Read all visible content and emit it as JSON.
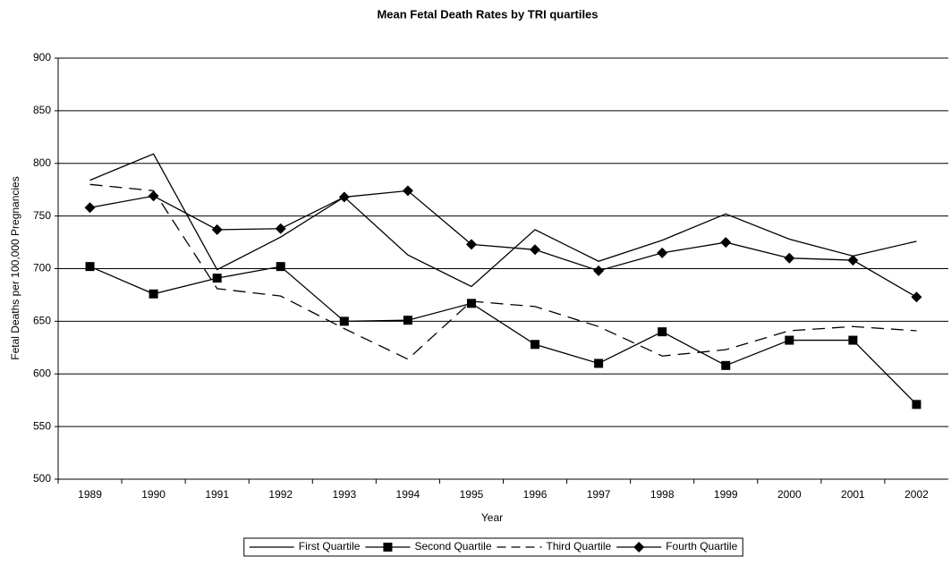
{
  "chart_data": {
    "type": "line",
    "title": "Mean Fetal Death Rates by TRI quartiles",
    "x_label": "Year",
    "y_label": "Fetal Deaths per 100,000 Pregnancies",
    "categories": [
      "1989",
      "1990",
      "1991",
      "1992",
      "1993",
      "1994",
      "1995",
      "1996",
      "1997",
      "1998",
      "1999",
      "2000",
      "2001",
      "2002"
    ],
    "ylim": [
      500,
      900
    ],
    "yticks": [
      500,
      550,
      600,
      650,
      700,
      750,
      800,
      850,
      900
    ],
    "grid": true,
    "legend": "bottom",
    "series": [
      {
        "name": "First Quartile",
        "color": "#000000",
        "dash": "solid",
        "marker": "none",
        "values": [
          784,
          809,
          699,
          730,
          768,
          713,
          683,
          737,
          707,
          727,
          752,
          728,
          712,
          726
        ]
      },
      {
        "name": "Second Quartile",
        "color": "#000000",
        "dash": "solid",
        "marker": "square",
        "values": [
          702,
          676,
          691,
          702,
          650,
          651,
          667,
          628,
          610,
          640,
          608,
          632,
          632,
          571
        ]
      },
      {
        "name": "Third Quartile",
        "color": "#000000",
        "dash": "dashed",
        "marker": "none",
        "values": [
          780,
          774,
          681,
          674,
          643,
          614,
          669,
          664,
          645,
          617,
          623,
          641,
          645,
          641
        ]
      },
      {
        "name": "Fourth Quartile",
        "color": "#000000",
        "dash": "solid",
        "marker": "diamond",
        "values": [
          758,
          769,
          737,
          738,
          768,
          774,
          723,
          718,
          698,
          715,
          725,
          710,
          708,
          673
        ]
      }
    ]
  }
}
